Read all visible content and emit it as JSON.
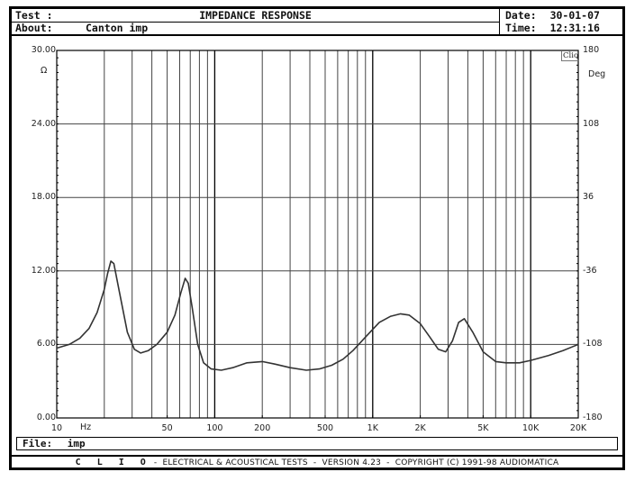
{
  "header": {
    "test_label": "Test :",
    "title": "IMPEDANCE RESPONSE",
    "about_label": "About:",
    "about_value": "Canton imp",
    "date_label": "Date:",
    "date_value": "30-01-07",
    "time_label": "Time:",
    "time_value": "12:31:16"
  },
  "file_bar": {
    "label": "File:",
    "value": "imp"
  },
  "footer": {
    "brand": "C L I O",
    "text": " -  ELECTRICAL & ACOUSTICAL TESTS  -  VERSION 4.23  -  COPYRIGHT (C) 1991-98 AUDIOMATICA"
  },
  "plot": {
    "left_unit": "Ω",
    "right_unit": "Deg",
    "corner_tag": "Clio",
    "x_unit": "Hz"
  },
  "chart_data": {
    "type": "line",
    "title": "IMPEDANCE RESPONSE",
    "xlabel": "Hz",
    "ylabel": "Ω",
    "y2label": "Deg",
    "xscale": "log",
    "xlim": [
      10,
      20000
    ],
    "ylim": [
      0,
      30
    ],
    "y2lim": [
      -180,
      180
    ],
    "grid": true,
    "x_ticks": [
      "10",
      "50",
      "100",
      "200",
      "500",
      "1K",
      "2K",
      "5K",
      "10K",
      "20K"
    ],
    "y_ticks": [
      "0.00",
      "6.00",
      "12.00",
      "18.00",
      "24.00",
      "30.00"
    ],
    "y2_ticks": [
      "-180",
      "-108",
      "-36",
      "36",
      "108",
      "180"
    ],
    "series": [
      {
        "name": "Impedance",
        "x": [
          10,
          12,
          14,
          16,
          18,
          20,
          21,
          22,
          23,
          25,
          28,
          31,
          34,
          38,
          43,
          50,
          56,
          61,
          65,
          68,
          72,
          78,
          85,
          95,
          110,
          130,
          160,
          200,
          240,
          300,
          380,
          460,
          550,
          650,
          750,
          900,
          1100,
          1300,
          1500,
          1700,
          2000,
          2300,
          2600,
          2900,
          3200,
          3500,
          3800,
          4300,
          5000,
          6000,
          7000,
          8500,
          10000,
          13000,
          16000,
          20000
        ],
        "values": [
          5.7,
          6.0,
          6.5,
          7.3,
          8.6,
          10.5,
          11.8,
          12.8,
          12.6,
          10.2,
          7.0,
          5.6,
          5.3,
          5.5,
          6.0,
          7.0,
          8.4,
          10.2,
          11.4,
          11.0,
          9.0,
          6.0,
          4.5,
          4.0,
          3.9,
          4.1,
          4.5,
          4.6,
          4.4,
          4.1,
          3.9,
          4.0,
          4.3,
          4.8,
          5.5,
          6.6,
          7.8,
          8.3,
          8.5,
          8.4,
          7.7,
          6.6,
          5.6,
          5.4,
          6.3,
          7.8,
          8.1,
          7.0,
          5.4,
          4.6,
          4.5,
          4.5,
          4.7,
          5.1,
          5.5,
          6.0
        ]
      }
    ]
  }
}
